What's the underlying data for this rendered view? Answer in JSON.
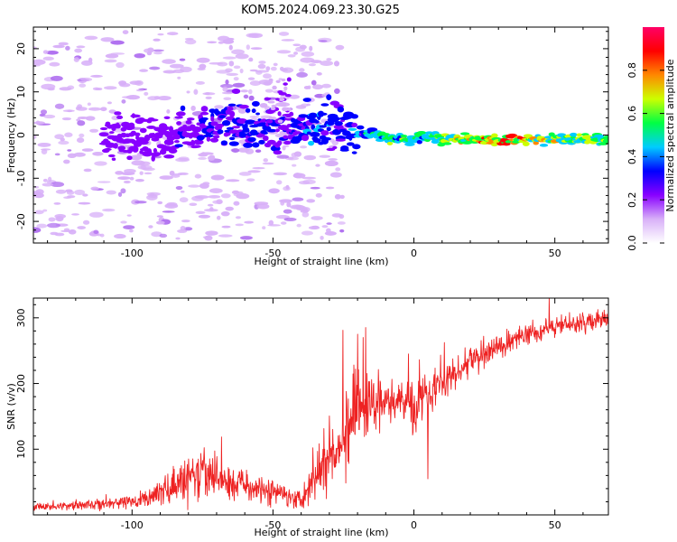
{
  "figure": {
    "title": "KOM5.2024.069.23.30.G25"
  },
  "chart_data": [
    {
      "type": "heatmap",
      "xlabel": "Height of straight line (km)",
      "ylabel": "Frequency (Hz)",
      "xlim": [
        -135,
        69
      ],
      "ylim": [
        -25,
        25
      ],
      "xticks": [
        -100,
        -50,
        0,
        50
      ],
      "yticks": [
        -20,
        -10,
        0,
        10,
        20
      ],
      "colorbar": {
        "label": "Normalized spectral amplitude",
        "range": [
          0,
          1
        ],
        "ticks": [
          "0.0",
          "0.2",
          "0.4",
          "0.6",
          "0.8"
        ],
        "colormap": [
          "#ffffff",
          "#d8b0f8",
          "#8800ff",
          "#0000ff",
          "#00ccff",
          "#00ff44",
          "#ccff00",
          "#ff8800",
          "#ff0000",
          "#ff0066"
        ]
      },
      "ridge": {
        "x": [
          -95,
          -85,
          -75,
          -65,
          -55,
          -45,
          -35,
          -28,
          -22,
          -15,
          -5,
          0,
          5,
          10,
          20,
          30,
          40,
          50,
          60,
          69
        ],
        "frequency": [
          -1,
          0,
          1,
          2,
          2,
          1,
          1,
          4,
          1,
          0,
          -1,
          -1,
          0,
          -1,
          -1,
          -1,
          -1,
          -1,
          -1,
          -1
        ],
        "amplitude": [
          0.22,
          0.25,
          0.3,
          0.35,
          0.35,
          0.3,
          0.4,
          0.35,
          0.35,
          0.55,
          0.6,
          0.55,
          0.6,
          0.62,
          0.75,
          0.85,
          0.8,
          0.7,
          0.65,
          0.6
        ]
      },
      "grid": false
    },
    {
      "type": "line",
      "xlabel": "Height of straight line (km)",
      "ylabel": "SNR (v/v)",
      "xlim": [
        -135,
        69
      ],
      "ylim": [
        0,
        330
      ],
      "xticks": [
        -100,
        -50,
        0,
        50
      ],
      "yticks": [
        100,
        200,
        300
      ],
      "series": [
        {
          "color": "#ee2222",
          "x": [
            -135,
            -125,
            -115,
            -105,
            -100,
            -95,
            -90,
            -85,
            -80,
            -75,
            -70,
            -65,
            -60,
            -55,
            -50,
            -45,
            -40,
            -38,
            -35,
            -30,
            -28,
            -25,
            -20,
            -18,
            -15,
            -10,
            -5,
            -2,
            0,
            2,
            5,
            10,
            15,
            20,
            25,
            30,
            35,
            40,
            45,
            50,
            55,
            60,
            65,
            69
          ],
          "values": [
            12,
            14,
            16,
            18,
            20,
            25,
            35,
            45,
            55,
            60,
            58,
            50,
            45,
            40,
            35,
            30,
            25,
            40,
            60,
            95,
            110,
            120,
            150,
            160,
            165,
            170,
            175,
            180,
            160,
            180,
            190,
            200,
            215,
            235,
            245,
            255,
            265,
            275,
            280,
            288,
            290,
            292,
            295,
            298
          ],
          "noise": [
            5,
            6,
            7,
            8,
            9,
            12,
            18,
            25,
            32,
            35,
            30,
            25,
            22,
            20,
            18,
            15,
            12,
            25,
            35,
            45,
            50,
            55,
            65,
            60,
            40,
            35,
            30,
            28,
            45,
            30,
            30,
            25,
            22,
            20,
            18,
            16,
            15,
            14,
            14,
            14,
            13,
            13,
            12,
            12
          ]
        }
      ],
      "grid": false
    }
  ]
}
